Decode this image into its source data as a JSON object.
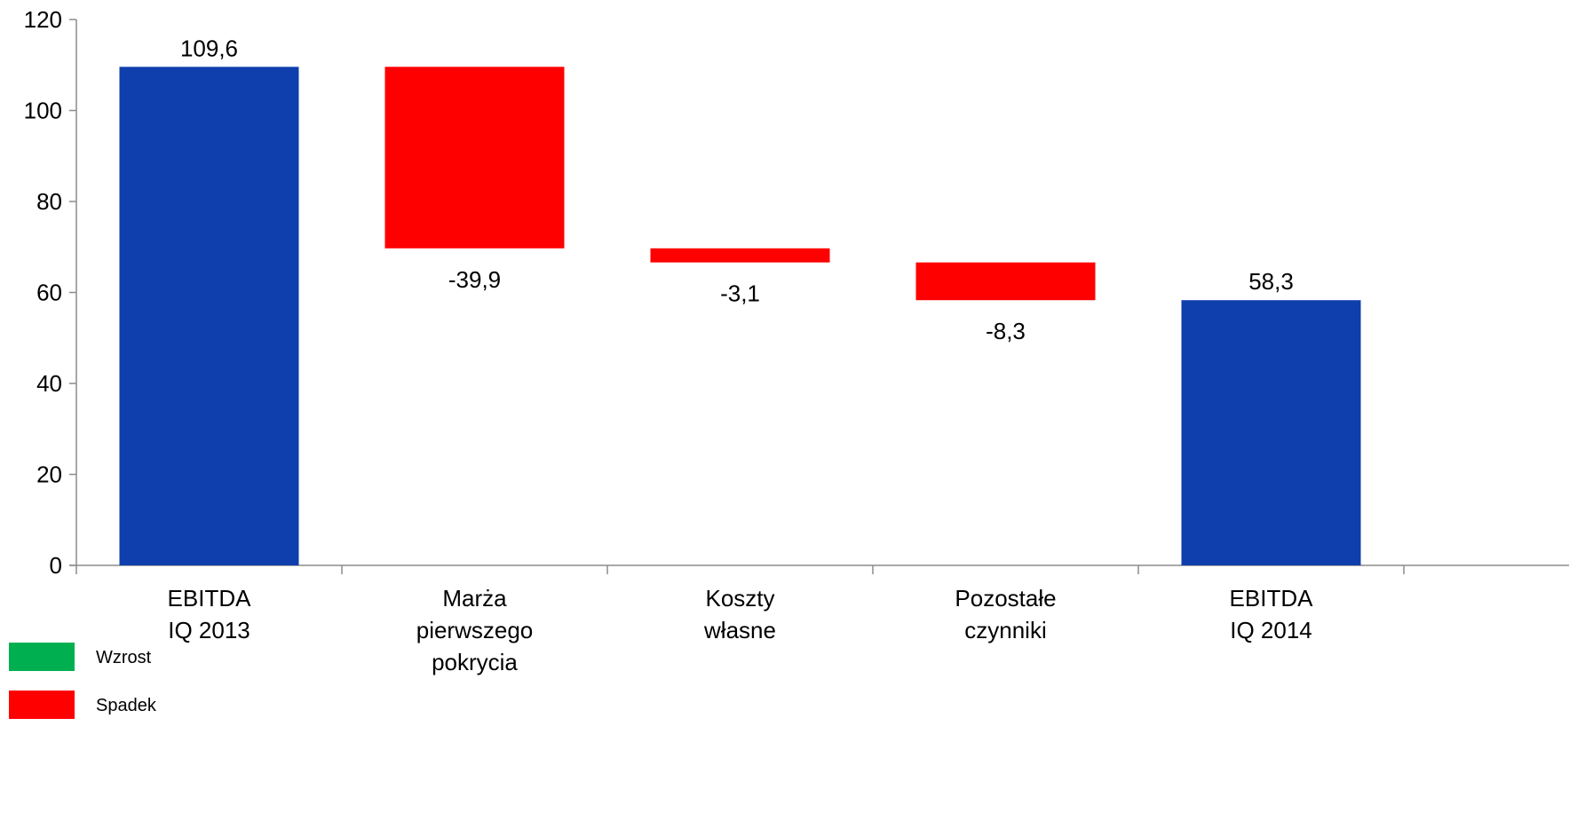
{
  "chart_data": {
    "type": "waterfall",
    "title": "",
    "xlabel": "",
    "ylabel": "",
    "ylim": [
      0,
      120
    ],
    "yticks": [
      0,
      20,
      40,
      60,
      80,
      100,
      120
    ],
    "grid": false,
    "legend_position": "bottom-left",
    "categories": [
      [
        "EBITDA",
        "IQ 2013"
      ],
      [
        "Marża",
        "pierwszego",
        "pokrycia"
      ],
      [
        "Koszty",
        "własne"
      ],
      [
        "Pozostałe",
        "czynniki"
      ],
      [
        "EBITDA",
        "IQ 2014"
      ]
    ],
    "bars": [
      {
        "kind": "total",
        "start": 0,
        "end": 109.6,
        "label": "109,6"
      },
      {
        "kind": "decrease",
        "start": 109.6,
        "end": 69.7,
        "label": "-39,9"
      },
      {
        "kind": "decrease",
        "start": 69.7,
        "end": 66.6,
        "label": "-3,1"
      },
      {
        "kind": "decrease",
        "start": 66.6,
        "end": 58.3,
        "label": "-8,3"
      },
      {
        "kind": "total",
        "start": 0,
        "end": 58.3,
        "label": "58,3"
      }
    ],
    "colors": {
      "total": "#0F3EAD",
      "increase": "#00B050",
      "decrease": "#FF0000",
      "axis": "#8C8C8C"
    },
    "legend": [
      {
        "key": "increase",
        "label": "Wzrost"
      },
      {
        "key": "decrease",
        "label": "Spadek"
      }
    ]
  }
}
